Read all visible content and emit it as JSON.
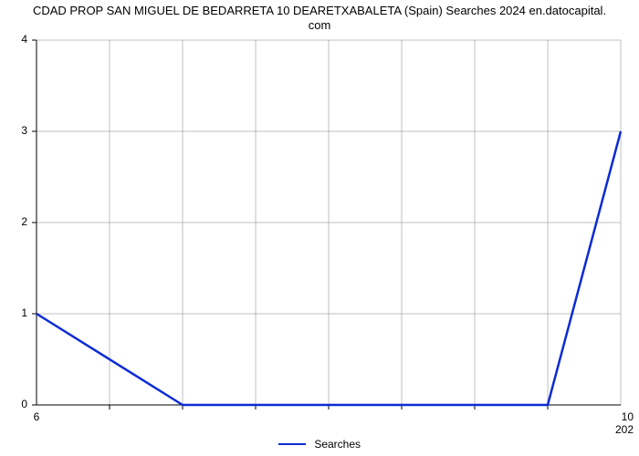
{
  "chart": {
    "type": "line",
    "title_line1": "CDAD PROP SAN MIGUEL DE BEDARRETA 10 DEARETXABALETA (Spain) Searches 2024 en.datocapital.",
    "title_line2": "com",
    "title_fontsize": 13,
    "background_color": "#ffffff",
    "grid_color": "#808080",
    "grid_width": 0.5,
    "axis_color": "#000000",
    "line_color": "#0b2bd6",
    "line_width": 2.5,
    "tick_color": "#000000",
    "tick_length": 5,
    "legend_label": "Searches",
    "xlim": [
      6,
      10
    ],
    "ylim": [
      0,
      4
    ],
    "x_axis_label_left": "6",
    "x_axis_label_right_top": "10",
    "x_axis_label_right_bottom": "202",
    "y_ticks": [
      0,
      1,
      2,
      3,
      4
    ],
    "x_grid_lines": 9,
    "y_grid_lines": 5,
    "x_tick_marks": [
      6.5,
      7,
      7.5,
      8,
      8.5,
      9,
      9.5
    ],
    "series": {
      "x": [
        6,
        7,
        9.5,
        10
      ],
      "y": [
        1,
        0,
        0,
        3
      ]
    },
    "label_fontsize": 12
  }
}
